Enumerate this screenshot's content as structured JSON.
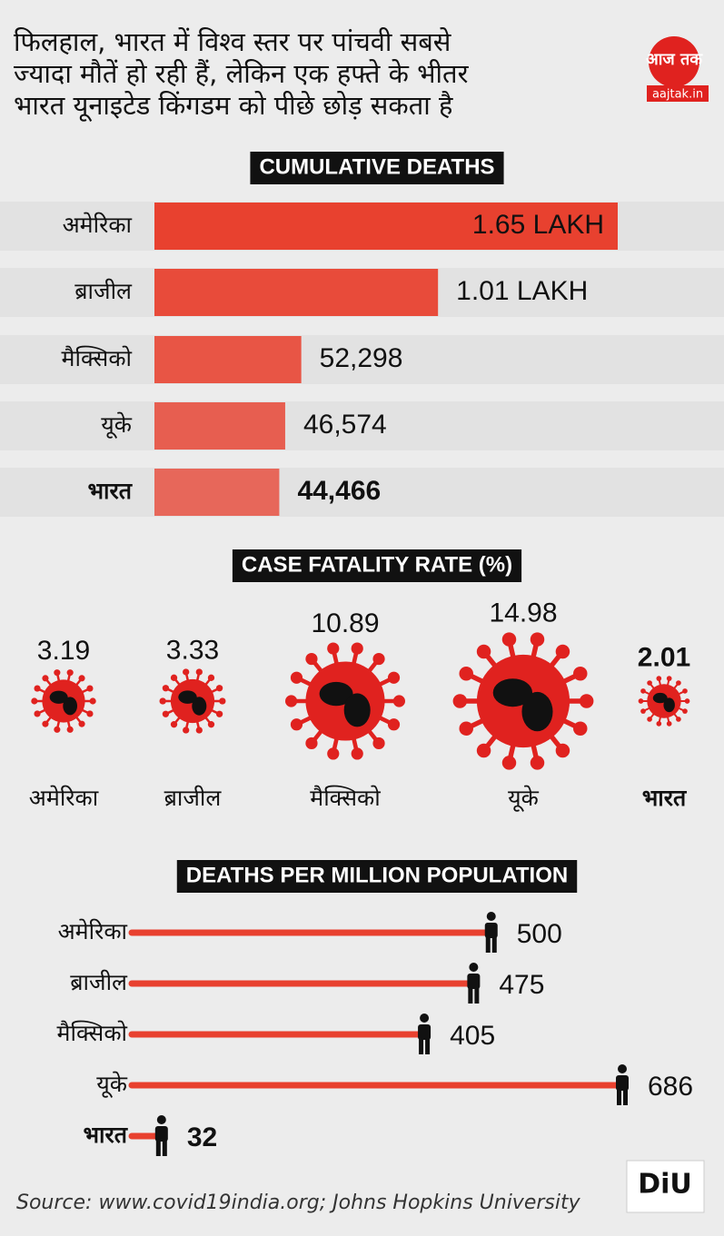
{
  "header": {
    "lines": [
      "फिलहाल, भारत में विश्व स्तर पर पांचवी सबसे",
      "ज्यादा मौतें हो रही हैं, लेकिन एक हफ्ते के भीतर",
      "भारत यूनाइटेड किंगडम को पीछे छोड़ सकता है"
    ]
  },
  "logo": {
    "text": "आज तक",
    "site": "aajtak.in"
  },
  "chart_data": [
    {
      "type": "bar",
      "title": "CUMULATIVE DEATHS",
      "categories": [
        "अमेरिका",
        "ब्राजील",
        "मैक्सिको",
        "यूके",
        "भारत"
      ],
      "values": [
        165000,
        101000,
        52298,
        46574,
        44466
      ],
      "value_labels": [
        "1.65 LAKH",
        "1.01 LAKH",
        "52,298",
        "46,574",
        "44,466"
      ],
      "color": "#e8412f"
    },
    {
      "type": "bubble",
      "title": "CASE FATALITY RATE (%)",
      "categories": [
        "अमेरिका",
        "ब्राजील",
        "मैक्सिको",
        "यूके",
        "भारत"
      ],
      "values": [
        3.19,
        3.33,
        10.89,
        14.98,
        2.01
      ],
      "color": "#e0221f"
    },
    {
      "type": "lollipop",
      "title": "DEATHS PER MILLION POPULATION",
      "categories": [
        "अमेरिका",
        "ब्राजील",
        "मैक्सिको",
        "यूके",
        "भारत"
      ],
      "values": [
        500,
        475,
        405,
        686,
        32
      ],
      "color": "#e8412f"
    }
  ],
  "source": "Source: www.covid19india.org; Johns Hopkins University",
  "badge": "DiU"
}
